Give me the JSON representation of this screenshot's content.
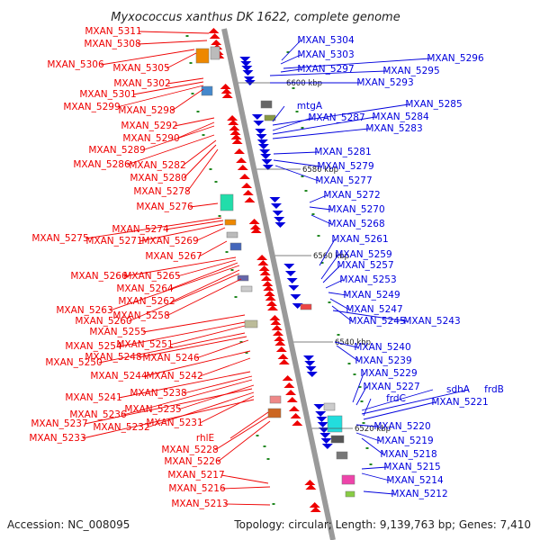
{
  "title": "Myxococcus xanthus DK 1622, complete genome",
  "footer": {
    "accession": "Accession: NC_008095",
    "summary": "Topology: circular; Length: 9,139,763 bp; Genes: 7,410"
  },
  "colors": {
    "left_strand": "#ee0000",
    "right_strand": "#0000dd",
    "backbone": "#999999",
    "tick": "#228822"
  },
  "kbp_markers": [
    "6600 kbp",
    "6580 kbp",
    "6560 kbp",
    "6540 kbp",
    "6520 kbp"
  ],
  "left_genes": [
    "MXAN_5311",
    "MXAN_5308",
    "MXAN_5306",
    "MXAN_5305",
    "MXAN_5302",
    "MXAN_5301",
    "MXAN_5299",
    "MXAN_5298",
    "MXAN_5292",
    "MXAN_5290",
    "MXAN_5289",
    "MXAN_5286",
    "MXAN_5282",
    "MXAN_5280",
    "MXAN_5278",
    "MXAN_5276",
    "MXAN_5275",
    "MXAN_5274",
    "MXAN_5271",
    "MXAN_5269",
    "MXAN_5267",
    "MXAN_5266",
    "MXAN_5265",
    "MXAN_5264",
    "MXAN_5263",
    "MXAN_5262",
    "MXAN_5260",
    "MXAN_5258",
    "MXAN_5255",
    "MXAN_5254",
    "MXAN_5251",
    "MXAN_5250",
    "MXAN_5248",
    "MXAN_5246",
    "MXAN_5244",
    "MXAN_5242",
    "MXAN_5241",
    "MXAN_5238",
    "MXAN_5236",
    "MXAN_5235",
    "MXAN_5237",
    "MXAN_5232",
    "MXAN_5231",
    "MXAN_5233",
    "rhlE",
    "MXAN_5228",
    "MXAN_5226",
    "MXAN_5217",
    "MXAN_5216",
    "MXAN_5213"
  ],
  "right_genes": [
    "MXAN_5304",
    "MXAN_5303",
    "MXAN_5296",
    "MXAN_5297",
    "MXAN_5295",
    "MXAN_5293",
    "mtgA",
    "MXAN_5285",
    "MXAN_5287",
    "MXAN_5284",
    "MXAN_5283",
    "MXAN_5281",
    "MXAN_5279",
    "MXAN_5277",
    "MXAN_5272",
    "MXAN_5270",
    "MXAN_5268",
    "MXAN_5261",
    "MXAN_5259",
    "MXAN_5257",
    "MXAN_5253",
    "MXAN_5249",
    "MXAN_5247",
    "MXAN_5245",
    "MXAN_5243",
    "MXAN_5240",
    "MXAN_5239",
    "MXAN_5229",
    "MXAN_5227",
    "sdhA",
    "frdB",
    "frdC",
    "MXAN_5221",
    "MXAN_5220",
    "MXAN_5219",
    "MXAN_5218",
    "MXAN_5215",
    "MXAN_5214",
    "MXAN_5212"
  ]
}
